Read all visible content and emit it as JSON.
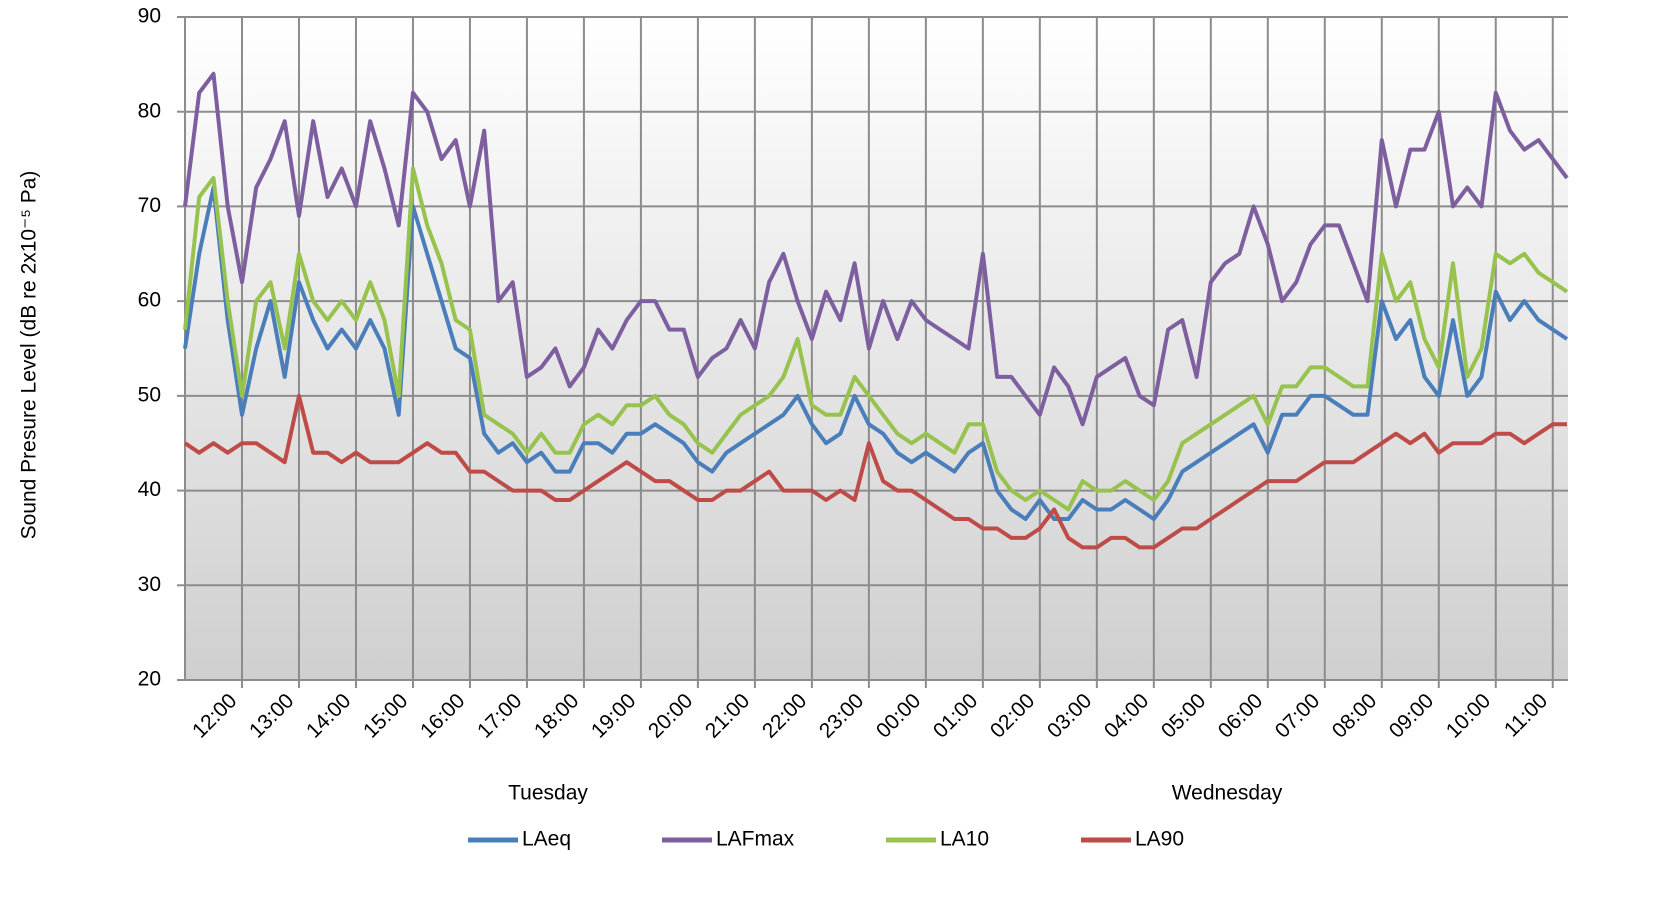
{
  "chart_data": {
    "type": "line",
    "y_label": "Sound Presure Level (dB re 2x10⁻⁵ Pa)",
    "x_groups": [
      "Tuesday",
      "Wednesday"
    ],
    "x": [
      0,
      0.25,
      0.5,
      0.75,
      1,
      1.25,
      1.5,
      1.75,
      2,
      2.25,
      2.5,
      2.75,
      3,
      3.25,
      3.5,
      3.75,
      4,
      4.25,
      4.5,
      4.75,
      5,
      5.25,
      5.5,
      5.75,
      6,
      6.25,
      6.5,
      6.75,
      7,
      7.25,
      7.5,
      7.75,
      8,
      8.25,
      8.5,
      8.75,
      9,
      9.25,
      9.5,
      9.75,
      10,
      10.25,
      10.5,
      10.75,
      11,
      11.25,
      11.5,
      11.75,
      12,
      12.25,
      12.5,
      12.75,
      13,
      13.25,
      13.5,
      13.75,
      14,
      14.25,
      14.5,
      14.75,
      15,
      15.25,
      15.5,
      15.75,
      16,
      16.25,
      16.5,
      16.75,
      17,
      17.25,
      17.5,
      17.75,
      18,
      18.25,
      18.5,
      18.75,
      19,
      19.25,
      19.5,
      19.75,
      20,
      20.25,
      20.5,
      20.75,
      21,
      21.25,
      21.5,
      21.75,
      22,
      22.25,
      22.5,
      22.75,
      23,
      23.25,
      23.5,
      23.75,
      24,
      24.25
    ],
    "xlim": [
      0,
      24.25
    ],
    "xticks": [
      {
        "value": 1,
        "label": "12:00"
      },
      {
        "value": 2,
        "label": "13:00"
      },
      {
        "value": 3,
        "label": "14:00"
      },
      {
        "value": 4,
        "label": "15:00"
      },
      {
        "value": 5,
        "label": "16:00"
      },
      {
        "value": 6,
        "label": "17:00"
      },
      {
        "value": 7,
        "label": "18:00"
      },
      {
        "value": 8,
        "label": "19:00"
      },
      {
        "value": 9,
        "label": "20:00"
      },
      {
        "value": 10,
        "label": "21:00"
      },
      {
        "value": 11,
        "label": "22:00"
      },
      {
        "value": 12,
        "label": "23:00"
      },
      {
        "value": 13,
        "label": "00:00"
      },
      {
        "value": 14,
        "label": "01:00"
      },
      {
        "value": 15,
        "label": "02:00"
      },
      {
        "value": 16,
        "label": "03:00"
      },
      {
        "value": 17,
        "label": "04:00"
      },
      {
        "value": 18,
        "label": "05:00"
      },
      {
        "value": 19,
        "label": "06:00"
      },
      {
        "value": 20,
        "label": "07:00"
      },
      {
        "value": 21,
        "label": "08:00"
      },
      {
        "value": 22,
        "label": "09:00"
      },
      {
        "value": 23,
        "label": "10:00"
      },
      {
        "value": 24,
        "label": "11:00"
      }
    ],
    "ylim": [
      20,
      90
    ],
    "yticks": [
      20,
      30,
      40,
      50,
      60,
      70,
      80,
      90
    ],
    "grid": true,
    "legend": "bottom",
    "series": [
      {
        "name": "LAeq",
        "color": "#4a7ebb",
        "values": [
          55,
          65,
          72,
          58,
          48,
          55,
          60,
          52,
          62,
          58,
          55,
          57,
          55,
          58,
          55,
          48,
          70,
          65,
          60,
          55,
          54,
          46,
          44,
          45,
          43,
          44,
          42,
          42,
          45,
          45,
          44,
          46,
          46,
          47,
          46,
          45,
          43,
          42,
          44,
          45,
          46,
          47,
          48,
          50,
          47,
          45,
          46,
          50,
          47,
          46,
          44,
          43,
          44,
          43,
          42,
          44,
          45,
          40,
          38,
          37,
          39,
          37,
          37,
          39,
          38,
          38,
          39,
          38,
          37,
          39,
          42,
          43,
          44,
          45,
          46,
          47,
          44,
          48,
          48,
          50,
          50,
          49,
          48,
          48,
          60,
          56,
          58,
          52,
          50,
          58,
          50,
          52,
          61,
          58,
          60,
          58,
          57,
          56
        ]
      },
      {
        "name": "LAFmax",
        "color": "#7d5fa0",
        "values": [
          70,
          82,
          84,
          70,
          62,
          72,
          75,
          79,
          69,
          79,
          71,
          74,
          70,
          79,
          74,
          68,
          82,
          80,
          75,
          77,
          70,
          78,
          60,
          62,
          52,
          53,
          55,
          51,
          53,
          57,
          55,
          58,
          60,
          60,
          57,
          57,
          52,
          54,
          55,
          58,
          55,
          62,
          65,
          60,
          56,
          61,
          58,
          64,
          55,
          60,
          56,
          60,
          58,
          57,
          56,
          55,
          65,
          52,
          52,
          50,
          48,
          53,
          51,
          47,
          52,
          53,
          54,
          50,
          49,
          57,
          58,
          52,
          62,
          64,
          65,
          70,
          66,
          60,
          62,
          66,
          68,
          68,
          64,
          60,
          77,
          70,
          76,
          76,
          80,
          70,
          72,
          70,
          82,
          78,
          76,
          77,
          75,
          73
        ]
      },
      {
        "name": "LA10",
        "color": "#98c24e",
        "values": [
          57,
          71,
          73,
          60,
          50,
          60,
          62,
          55,
          65,
          60,
          58,
          60,
          58,
          62,
          58,
          50,
          74,
          68,
          64,
          58,
          57,
          48,
          47,
          46,
          44,
          46,
          44,
          44,
          47,
          48,
          47,
          49,
          49,
          50,
          48,
          47,
          45,
          44,
          46,
          48,
          49,
          50,
          52,
          56,
          49,
          48,
          48,
          52,
          50,
          48,
          46,
          45,
          46,
          45,
          44,
          47,
          47,
          42,
          40,
          39,
          40,
          39,
          38,
          41,
          40,
          40,
          41,
          40,
          39,
          41,
          45,
          46,
          47,
          48,
          49,
          50,
          47,
          51,
          51,
          53,
          53,
          52,
          51,
          51,
          65,
          60,
          62,
          56,
          53,
          64,
          52,
          55,
          65,
          64,
          65,
          63,
          62,
          61
        ]
      },
      {
        "name": "LA90",
        "color": "#be4b48",
        "values": [
          45,
          44,
          45,
          44,
          45,
          45,
          44,
          43,
          50,
          44,
          44,
          43,
          44,
          43,
          43,
          43,
          44,
          45,
          44,
          44,
          42,
          42,
          41,
          40,
          40,
          40,
          39,
          39,
          40,
          41,
          42,
          43,
          42,
          41,
          41,
          40,
          39,
          39,
          40,
          40,
          41,
          42,
          40,
          40,
          40,
          39,
          40,
          39,
          45,
          41,
          40,
          40,
          39,
          38,
          37,
          37,
          36,
          36,
          35,
          35,
          36,
          38,
          35,
          34,
          34,
          35,
          35,
          34,
          34,
          35,
          36,
          36,
          37,
          38,
          39,
          40,
          41,
          41,
          41,
          42,
          43,
          43,
          43,
          44,
          45,
          46,
          45,
          46,
          44,
          45,
          45,
          45,
          46,
          46,
          45,
          46,
          47,
          47
        ]
      }
    ]
  }
}
